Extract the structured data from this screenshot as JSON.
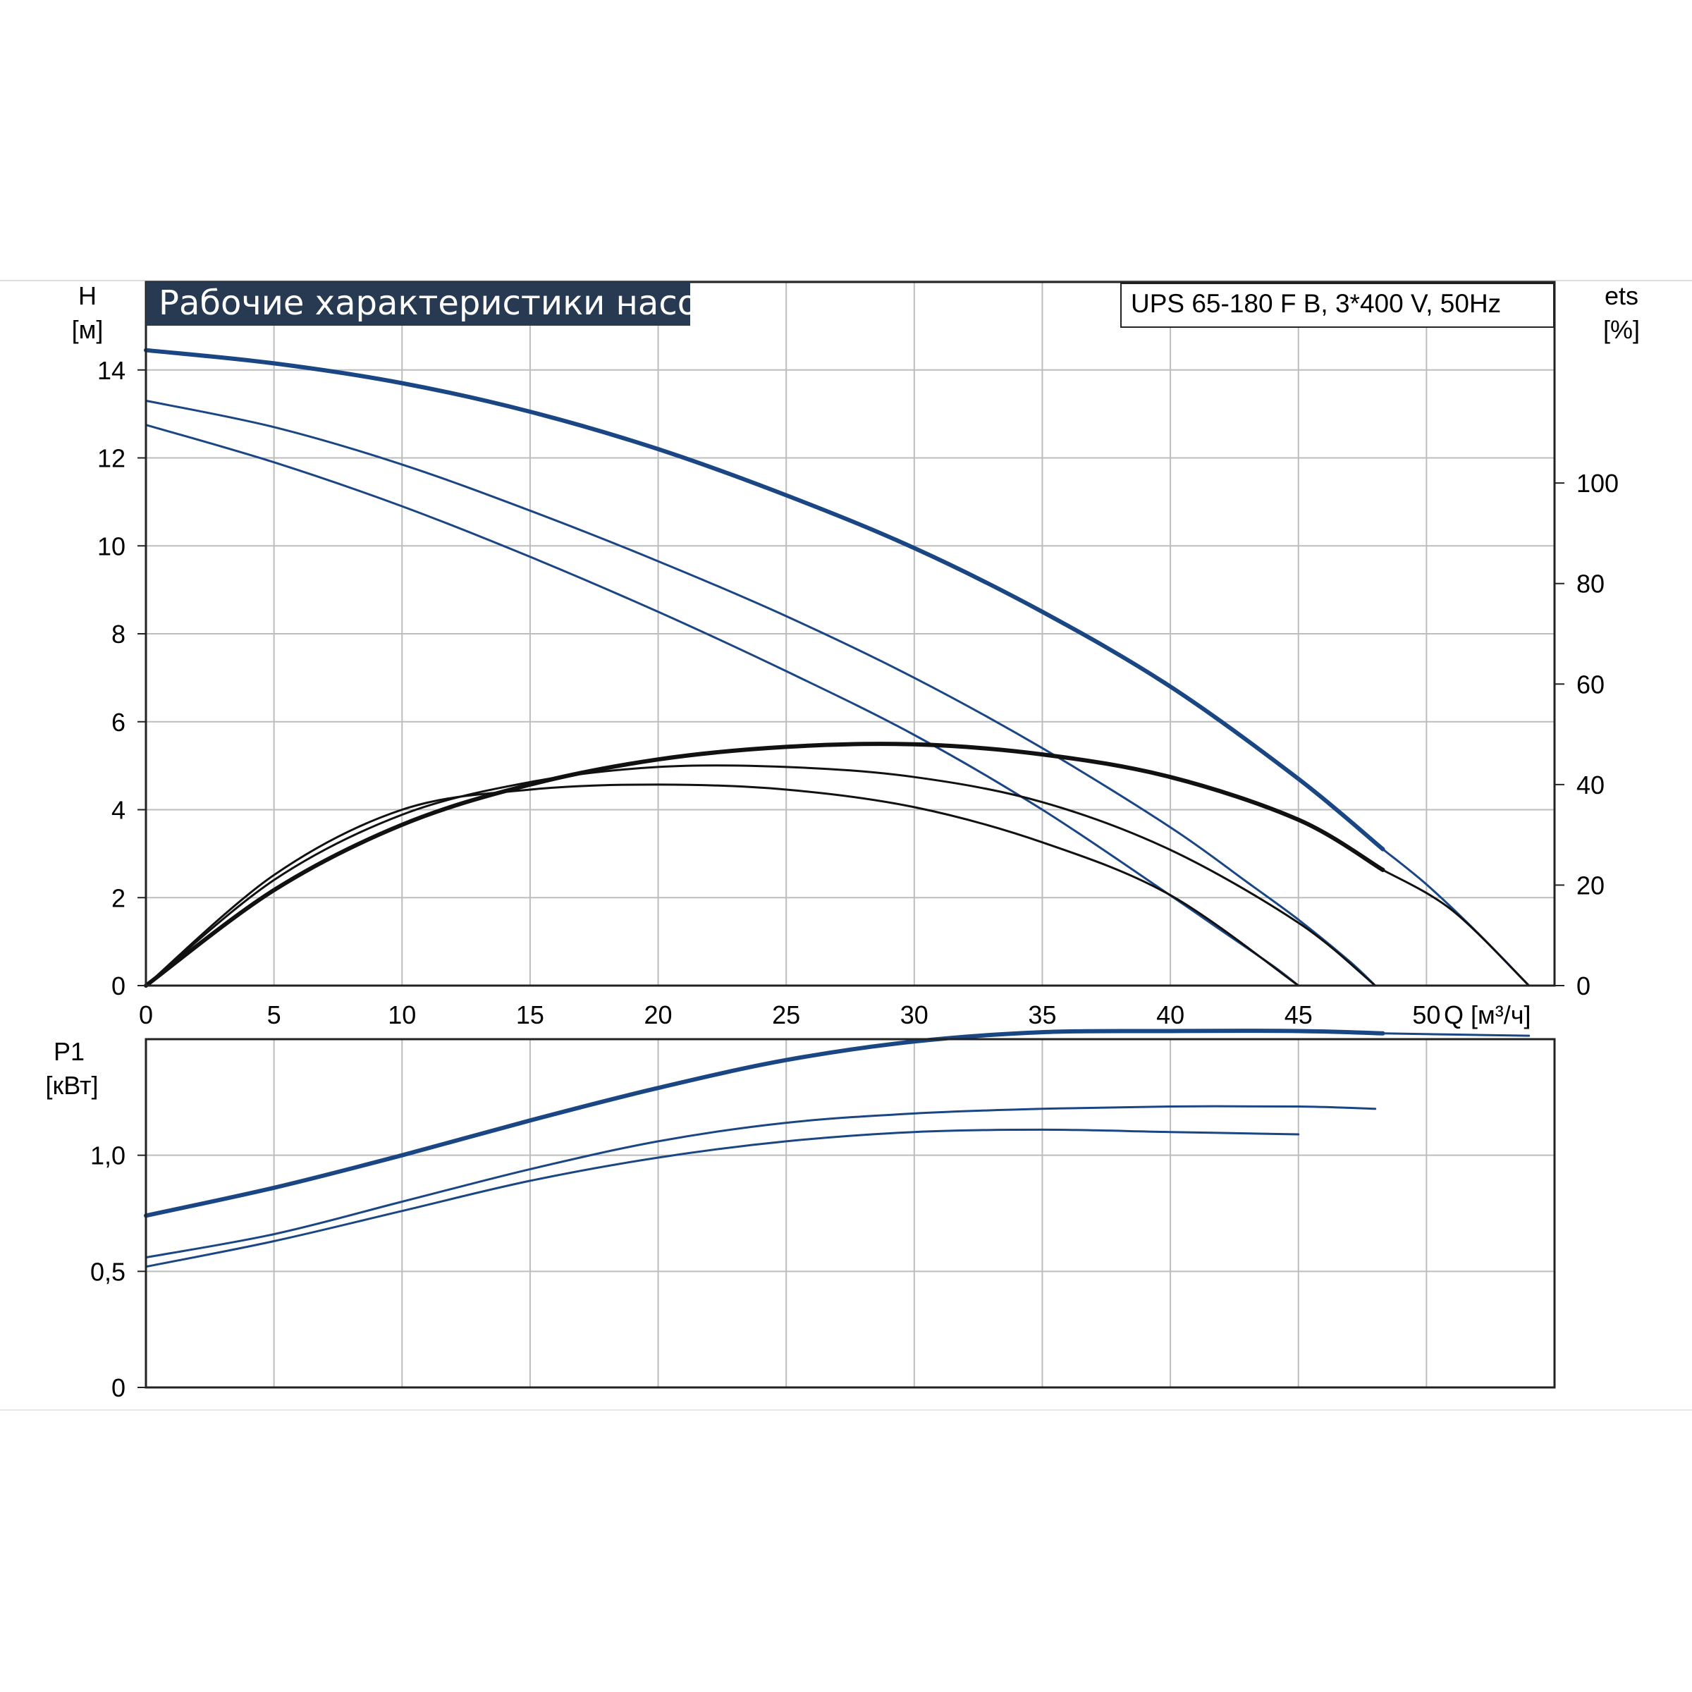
{
  "title": "Рабочие характеристики насоса",
  "model": "UPS 65-180 F B, 3*400 V, 50Hz",
  "colors": {
    "blue": "#1a4684",
    "black": "#111111",
    "grid": "#bdbdbd",
    "title_bg": "#273a52"
  },
  "chart_data": [
    {
      "type": "line",
      "name": "head-efficiency",
      "y_label_top": "H",
      "y_label_unit": "[м]",
      "y2_label_top": "ets",
      "y2_label_unit": "[%]",
      "x_label": "Q [м³/ч]",
      "xlim": [
        0,
        55
      ],
      "ylim": [
        0,
        16
      ],
      "y2lim": [
        0,
        140
      ],
      "x_ticks": [
        "0",
        "5",
        "10",
        "15",
        "20",
        "25",
        "30",
        "35",
        "40",
        "45",
        "50"
      ],
      "y_ticks": [
        "0",
        "2",
        "4",
        "6",
        "8",
        "10",
        "12",
        "14"
      ],
      "y2_ticks": [
        "0",
        "20",
        "40",
        "60",
        "80",
        "100"
      ],
      "grid": true,
      "series": [
        {
          "kind": "head",
          "speed": "max",
          "color": "blue",
          "thick": true,
          "x": [
            0,
            5,
            10,
            15,
            20,
            25,
            30,
            35,
            40,
            45,
            48.3
          ],
          "y": [
            14.45,
            14.15,
            13.7,
            13.05,
            12.2,
            11.15,
            9.95,
            8.5,
            6.8,
            4.7,
            3.1
          ]
        },
        {
          "kind": "head",
          "speed": "max",
          "color": "blue",
          "thick": false,
          "x": [
            48.3,
            50,
            52,
            54
          ],
          "y": [
            3.1,
            2.3,
            1.2,
            0
          ]
        },
        {
          "kind": "head",
          "speed": "mid",
          "color": "blue",
          "thick": false,
          "x": [
            0,
            5,
            10,
            15,
            20,
            25,
            30,
            35,
            40,
            43,
            45,
            47,
            48
          ],
          "y": [
            13.3,
            12.7,
            11.85,
            10.8,
            9.65,
            8.4,
            7.0,
            5.4,
            3.6,
            2.35,
            1.5,
            0.55,
            0
          ]
        },
        {
          "kind": "head",
          "speed": "min",
          "color": "blue",
          "thick": false,
          "x": [
            0,
            5,
            10,
            15,
            20,
            25,
            30,
            35,
            40,
            42,
            44,
            45
          ],
          "y": [
            12.75,
            11.9,
            10.9,
            9.75,
            8.5,
            7.15,
            5.7,
            4.0,
            2.05,
            1.25,
            0.45,
            0
          ]
        },
        {
          "kind": "efficiency",
          "speed": "max",
          "color": "black",
          "thick": true,
          "x": [
            0,
            5,
            10,
            15,
            20,
            25,
            30,
            35,
            40,
            45,
            48.3
          ],
          "y": [
            0,
            19,
            32,
            40,
            45,
            47.5,
            48,
            46,
            41.5,
            33,
            23
          ]
        },
        {
          "kind": "efficiency",
          "speed": "max",
          "color": "black",
          "thick": false,
          "x": [
            48.3,
            51,
            54
          ],
          "y": [
            23,
            15,
            0
          ]
        },
        {
          "kind": "efficiency",
          "speed": "mid",
          "color": "black",
          "thick": false,
          "x": [
            0,
            5,
            10,
            15,
            20,
            25,
            30,
            35,
            40,
            45,
            48
          ],
          "y": [
            0,
            21,
            34,
            40.5,
            43.5,
            43.5,
            41.5,
            36.5,
            27,
            12.5,
            0
          ]
        },
        {
          "kind": "efficiency",
          "speed": "min",
          "color": "black",
          "thick": false,
          "x": [
            0,
            5,
            10,
            15,
            20,
            25,
            30,
            35,
            40,
            45
          ],
          "y": [
            0,
            22,
            35,
            39,
            40,
            39,
            35.5,
            28.5,
            18,
            0
          ]
        }
      ]
    },
    {
      "type": "line",
      "name": "power",
      "y_label_top": "P1",
      "y_label_unit": "[кВт]",
      "xlim": [
        0,
        55
      ],
      "ylim": [
        0,
        1.5
      ],
      "y_ticks": [
        "0",
        "0,5",
        "1,0"
      ],
      "grid": true,
      "series": [
        {
          "kind": "power",
          "speed": "max",
          "color": "blue",
          "thick": true,
          "x": [
            0,
            5,
            10,
            15,
            20,
            25,
            30,
            35,
            40,
            45,
            48.3
          ],
          "y": [
            0.74,
            0.86,
            1.0,
            1.15,
            1.29,
            1.41,
            1.49,
            1.53,
            1.535,
            1.535,
            1.525
          ]
        },
        {
          "kind": "power",
          "speed": "max",
          "color": "blue",
          "thick": false,
          "x": [
            48.3,
            51,
            54
          ],
          "y": [
            1.525,
            1.52,
            1.515
          ]
        },
        {
          "kind": "power",
          "speed": "mid",
          "color": "blue",
          "thick": false,
          "x": [
            0,
            5,
            10,
            15,
            20,
            25,
            30,
            35,
            40,
            45,
            48
          ],
          "y": [
            0.56,
            0.66,
            0.8,
            0.94,
            1.06,
            1.14,
            1.18,
            1.2,
            1.21,
            1.21,
            1.2
          ]
        },
        {
          "kind": "power",
          "speed": "min",
          "color": "blue",
          "thick": false,
          "x": [
            0,
            5,
            10,
            15,
            20,
            25,
            30,
            35,
            40,
            45
          ],
          "y": [
            0.52,
            0.63,
            0.76,
            0.89,
            0.99,
            1.06,
            1.1,
            1.11,
            1.1,
            1.09
          ]
        }
      ]
    }
  ]
}
